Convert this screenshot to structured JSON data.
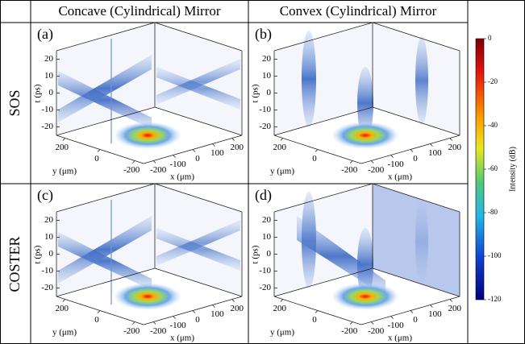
{
  "columns": [
    "Concave (Cylindrical) Mirror",
    "Convex (Cylindrical) Mirror"
  ],
  "rows": [
    "SOS",
    "COSTER"
  ],
  "panels": [
    {
      "label": "(a)"
    },
    {
      "label": "(b)"
    },
    {
      "label": "(c)"
    },
    {
      "label": "(d)"
    }
  ],
  "axes": {
    "t_label": "t (ps)",
    "t_ticks": [
      20,
      10,
      0,
      -10,
      -20
    ],
    "y_label": "y (μm)",
    "y_ticks": [
      200,
      0,
      -200
    ],
    "x_label": "x (μm)",
    "x_ticks": [
      -200,
      -100,
      0,
      100,
      200
    ]
  },
  "colorbar": {
    "label": "Intensity (dB)",
    "lim": [
      -120,
      0
    ],
    "ticks": [
      0,
      -20,
      -40,
      -60,
      -80,
      -100,
      -120
    ]
  }
}
